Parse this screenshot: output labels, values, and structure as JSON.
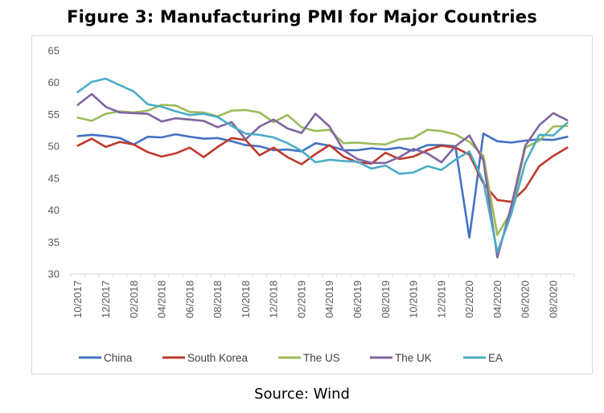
{
  "figure": {
    "title": "Figure 3: Manufacturing PMI for Major Countries",
    "source": "Source: Wind"
  },
  "chart_data": {
    "type": "line",
    "x": [
      "10/2017",
      "11/2017",
      "12/2017",
      "01/2018",
      "02/2018",
      "03/2018",
      "04/2018",
      "05/2018",
      "06/2018",
      "07/2018",
      "08/2018",
      "09/2018",
      "10/2018",
      "11/2018",
      "12/2018",
      "01/2019",
      "02/2019",
      "03/2019",
      "04/2019",
      "05/2019",
      "06/2019",
      "07/2019",
      "08/2019",
      "09/2019",
      "10/2019",
      "11/2019",
      "12/2019",
      "01/2020",
      "02/2020",
      "03/2020",
      "04/2020",
      "05/2020",
      "06/2020",
      "07/2020",
      "08/2020",
      "09/2020"
    ],
    "x_tick_labels": [
      "10/2017",
      "12/2017",
      "02/2018",
      "04/2018",
      "06/2018",
      "08/2018",
      "10/2018",
      "12/2018",
      "02/2019",
      "04/2019",
      "06/2019",
      "08/2019",
      "10/2019",
      "12/2019",
      "02/2020",
      "04/2020",
      "06/2020",
      "08/2020"
    ],
    "ylim": [
      30,
      65
    ],
    "y_ticks": [
      "30",
      "35",
      "40",
      "45",
      "50",
      "55",
      "60",
      "65"
    ],
    "grid": false,
    "legend_position": "bottom",
    "series": [
      {
        "name": "China",
        "color": "#4472c4",
        "values": [
          51.6,
          51.8,
          51.6,
          51.3,
          50.3,
          51.5,
          51.4,
          51.9,
          51.5,
          51.2,
          51.3,
          50.8,
          50.2,
          50.0,
          49.4,
          49.5,
          49.2,
          50.5,
          50.1,
          49.4,
          49.4,
          49.7,
          49.5,
          49.8,
          49.3,
          50.2,
          50.2,
          50.0,
          35.7,
          52.0,
          50.8,
          50.6,
          50.9,
          51.1,
          51.0,
          51.5
        ]
      },
      {
        "name": "South Korea",
        "color": "#c0392b",
        "values": [
          50.1,
          51.2,
          49.9,
          50.7,
          50.3,
          49.1,
          48.4,
          48.9,
          49.8,
          48.3,
          49.9,
          51.3,
          51.0,
          48.6,
          49.8,
          48.3,
          47.2,
          48.8,
          50.2,
          48.4,
          47.5,
          47.3,
          49.0,
          48.0,
          48.4,
          49.4,
          50.1,
          49.8,
          48.7,
          44.2,
          41.6,
          41.3,
          43.4,
          46.9,
          48.5,
          49.8
        ]
      },
      {
        "name": "The US",
        "color": "#9bbb59",
        "values": [
          54.5,
          54.0,
          55.1,
          55.5,
          55.3,
          55.6,
          56.5,
          56.4,
          55.4,
          55.3,
          54.7,
          55.6,
          55.7,
          55.3,
          53.8,
          54.9,
          53.0,
          52.4,
          52.6,
          50.5,
          50.6,
          50.4,
          50.3,
          51.1,
          51.3,
          52.6,
          52.4,
          51.9,
          50.7,
          48.5,
          36.1,
          39.8,
          49.8,
          50.9,
          53.1,
          53.2
        ]
      },
      {
        "name": "The UK",
        "color": "#8064a2",
        "values": [
          56.5,
          58.2,
          56.2,
          55.3,
          55.2,
          55.1,
          53.9,
          54.4,
          54.2,
          54.0,
          53.0,
          53.8,
          51.1,
          53.1,
          54.2,
          52.8,
          52.1,
          55.1,
          53.1,
          49.4,
          48.0,
          47.4,
          47.4,
          48.3,
          49.6,
          48.9,
          47.5,
          50.0,
          51.7,
          47.8,
          32.6,
          40.7,
          50.1,
          53.3,
          55.2,
          54.1
        ]
      },
      {
        "name": "EA",
        "color": "#4bacc6",
        "values": [
          58.5,
          60.1,
          60.6,
          59.6,
          58.6,
          56.6,
          56.2,
          55.5,
          54.9,
          55.1,
          54.6,
          53.2,
          52.0,
          51.8,
          51.4,
          50.5,
          49.3,
          47.5,
          47.9,
          47.7,
          47.6,
          46.5,
          47.0,
          45.7,
          45.9,
          46.9,
          46.3,
          47.9,
          49.2,
          44.5,
          33.4,
          39.4,
          47.4,
          51.8,
          51.7,
          53.7
        ]
      }
    ]
  }
}
